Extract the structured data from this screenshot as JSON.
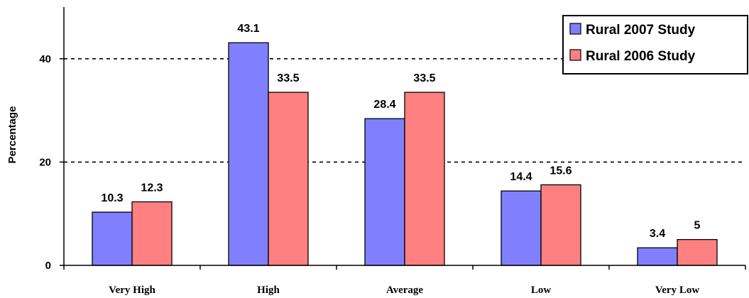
{
  "chart_data": {
    "type": "bar",
    "categories": [
      "Very High",
      "High",
      "Average",
      "Low",
      "Very Low"
    ],
    "series": [
      {
        "name": "Rural 2007 Study",
        "values": [
          10.3,
          43.1,
          28.4,
          14.4,
          3.4
        ],
        "color": "#8080ff"
      },
      {
        "name": "Rural 2006 Study",
        "values": [
          12.3,
          33.5,
          33.5,
          15.6,
          5
        ],
        "color": "#ff8080"
      }
    ],
    "title": "",
    "xlabel": "",
    "ylabel": "Percentage",
    "ylim": [
      0,
      50
    ],
    "yticks": [
      0,
      20,
      40
    ],
    "grid": "dashed horizontal at 20 and 40",
    "legend_position": "top-right"
  }
}
